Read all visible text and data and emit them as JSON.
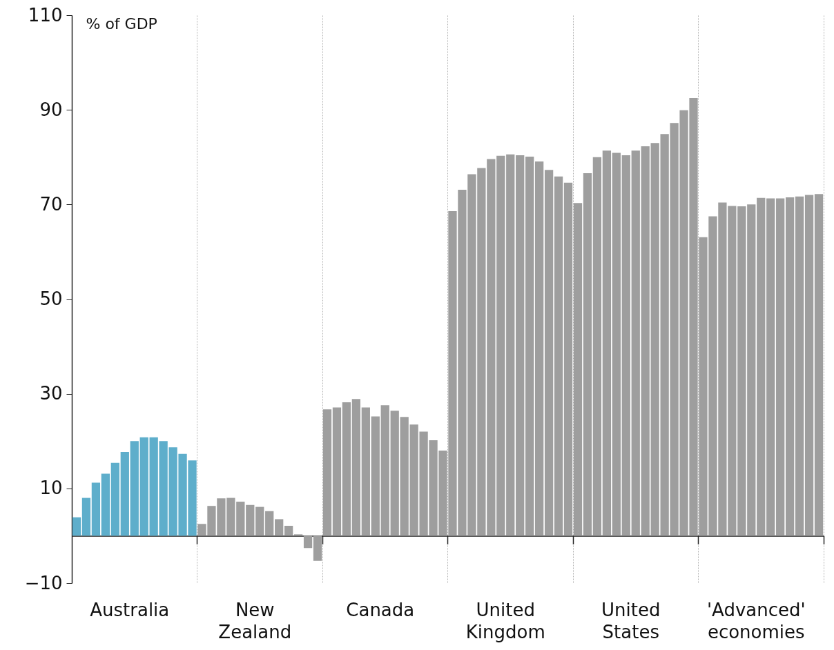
{
  "chart_data": {
    "type": "bar",
    "ylabel": "% of GDP",
    "categories": [
      null,
      null,
      null,
      null,
      null,
      null,
      "Australia",
      null,
      null,
      null,
      null,
      null,
      null,
      null,
      null,
      null,
      null,
      null,
      null,
      "New Zealand",
      null,
      null,
      null,
      null,
      null,
      null,
      null,
      null,
      null,
      null,
      null,
      null,
      "Canada",
      null,
      null,
      null,
      null,
      null,
      null,
      null,
      null,
      null,
      null,
      null,
      null,
      "United Kingdom",
      null,
      null,
      null,
      null,
      null,
      null,
      null,
      null,
      null,
      null,
      null,
      null,
      "United States",
      null,
      null,
      null,
      null,
      null,
      null,
      null,
      null,
      null,
      null,
      null,
      null,
      "'Advanced' economies",
      null,
      null,
      null,
      null,
      null,
      null
    ],
    "values": [
      3.9,
      8.0,
      11.2,
      13.1,
      15.4,
      17.7,
      20.0,
      20.8,
      20.8,
      20.0,
      18.7,
      17.3,
      15.9,
      2.5,
      6.3,
      7.9,
      8.0,
      7.2,
      6.5,
      6.1,
      5.2,
      3.5,
      2.1,
      0.3,
      -2.6,
      -5.3,
      26.7,
      27.1,
      28.2,
      28.9,
      27.1,
      25.2,
      27.6,
      26.4,
      25.1,
      23.5,
      22.0,
      20.2,
      18.0,
      68.6,
      73.1,
      76.4,
      77.7,
      79.6,
      80.3,
      80.6,
      80.4,
      80.1,
      79.1,
      77.3,
      75.9,
      74.6,
      70.3,
      76.6,
      80.0,
      81.4,
      80.9,
      80.4,
      81.4,
      82.3,
      83.0,
      84.9,
      87.2,
      89.9,
      92.5,
      63.1,
      67.5,
      70.4,
      69.7,
      69.6,
      70.0,
      71.4,
      71.3,
      71.3,
      71.5,
      71.7,
      72.0,
      72.2
    ],
    "colors": [
      "#5eaecb",
      "#5eaecb",
      "#5eaecb",
      "#5eaecb",
      "#5eaecb",
      "#5eaecb",
      "#5eaecb",
      "#5eaecb",
      "#5eaecb",
      "#5eaecb",
      "#5eaecb",
      "#5eaecb",
      "#5eaecb",
      "#9e9e9e",
      "#9e9e9e",
      "#9e9e9e",
      "#9e9e9e",
      "#9e9e9e",
      "#9e9e9e",
      "#9e9e9e",
      "#9e9e9e",
      "#9e9e9e",
      "#9e9e9e",
      "#9e9e9e",
      "#9e9e9e",
      "#9e9e9e",
      "#9e9e9e",
      "#9e9e9e",
      "#9e9e9e",
      "#9e9e9e",
      "#9e9e9e",
      "#9e9e9e",
      "#9e9e9e",
      "#9e9e9e",
      "#9e9e9e",
      "#9e9e9e",
      "#9e9e9e",
      "#9e9e9e",
      "#9e9e9e",
      "#9e9e9e",
      "#9e9e9e",
      "#9e9e9e",
      "#9e9e9e",
      "#9e9e9e",
      "#9e9e9e",
      "#9e9e9e",
      "#9e9e9e",
      "#9e9e9e",
      "#9e9e9e",
      "#9e9e9e",
      "#9e9e9e",
      "#9e9e9e",
      "#9e9e9e",
      "#9e9e9e",
      "#9e9e9e",
      "#9e9e9e",
      "#9e9e9e",
      "#9e9e9e",
      "#9e9e9e",
      "#9e9e9e",
      "#9e9e9e",
      "#9e9e9e",
      "#9e9e9e",
      "#9e9e9e",
      "#9e9e9e",
      "#9e9e9e",
      "#9e9e9e",
      "#9e9e9e",
      "#9e9e9e",
      "#9e9e9e",
      "#9e9e9e",
      "#9e9e9e",
      "#9e9e9e",
      "#9e9e9e",
      "#9e9e9e",
      "#9e9e9e",
      "#9e9e9e",
      "#9e9e9e"
    ],
    "ylim": [
      -10,
      110
    ],
    "yticks": [
      -10,
      10,
      30,
      50,
      70,
      90,
      110
    ],
    "grid": "x"
  }
}
